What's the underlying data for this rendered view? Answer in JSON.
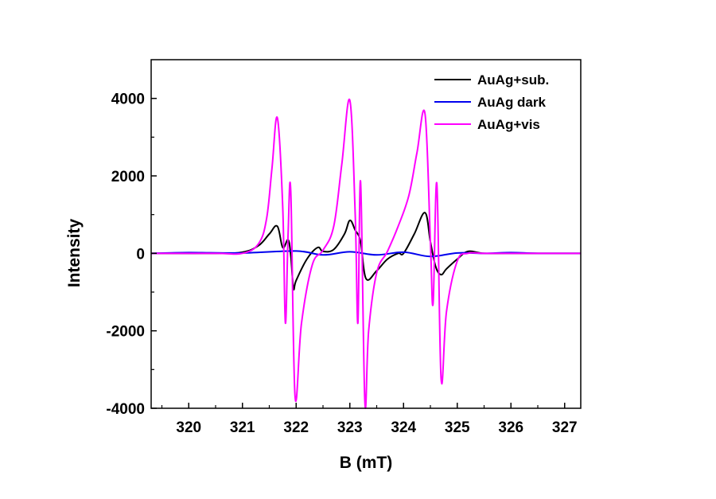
{
  "chart_data": {
    "type": "line",
    "xlabel": "B (mT)",
    "ylabel": "Intensity",
    "xlim": [
      319.3,
      327.3
    ],
    "ylim": [
      -4000,
      5000
    ],
    "x_ticks": [
      320,
      321,
      322,
      323,
      324,
      325,
      326,
      327
    ],
    "y_ticks": [
      -4000,
      -2000,
      0,
      2000,
      4000
    ],
    "x_tick_labels": [
      "320",
      "321",
      "322",
      "323",
      "324",
      "325",
      "326",
      "327"
    ],
    "y_tick_labels": [
      "-4000",
      "-2000",
      "0",
      "2000",
      "4000"
    ],
    "grid": false,
    "legend_position": "top-right",
    "series": [
      {
        "name": "AuAg+sub.",
        "color": "#000000",
        "x": [
          319.3,
          320.5,
          321.0,
          321.3,
          321.5,
          321.65,
          321.75,
          321.85,
          321.9,
          321.95,
          322.0,
          322.2,
          322.4,
          322.5,
          322.7,
          322.9,
          323.0,
          323.1,
          323.2,
          323.3,
          323.5,
          323.7,
          323.9,
          324.0,
          324.2,
          324.4,
          324.5,
          324.6,
          324.7,
          324.8,
          325.0,
          325.2,
          325.5,
          326.0,
          327.3
        ],
        "y": [
          0,
          0,
          30,
          200,
          500,
          700,
          150,
          350,
          -50,
          -900,
          -700,
          -150,
          150,
          50,
          100,
          500,
          850,
          600,
          300,
          -650,
          -450,
          -150,
          0,
          0,
          500,
          1050,
          300,
          -350,
          -550,
          -400,
          -150,
          50,
          0,
          0,
          0
        ]
      },
      {
        "name": "AuAg dark",
        "color": "#0000ee",
        "x": [
          319.3,
          320.0,
          321.0,
          322.0,
          322.5,
          323.0,
          323.5,
          324.0,
          324.5,
          325.0,
          325.5,
          326.0,
          326.5,
          327.3
        ],
        "y": [
          0,
          20,
          10,
          60,
          -40,
          40,
          -40,
          30,
          -80,
          10,
          0,
          20,
          0,
          0
        ]
      },
      {
        "name": "AuAg+vis",
        "color": "#ff00ff",
        "x": [
          319.3,
          320.5,
          321.0,
          321.3,
          321.45,
          321.55,
          321.65,
          321.75,
          321.8,
          321.85,
          321.9,
          321.98,
          322.1,
          322.3,
          322.5,
          322.7,
          322.85,
          323.0,
          323.1,
          323.15,
          323.2,
          323.28,
          323.35,
          323.5,
          323.7,
          323.9,
          324.1,
          324.25,
          324.4,
          324.5,
          324.55,
          324.62,
          324.7,
          324.8,
          325.0,
          325.2,
          325.5,
          326.0,
          327.3
        ],
        "y": [
          0,
          0,
          0,
          250,
          900,
          2200,
          3500,
          1200,
          -1800,
          500,
          1600,
          -3700,
          -1800,
          -300,
          80,
          700,
          2300,
          3950,
          1000,
          -1800,
          1850,
          -3850,
          -2000,
          -500,
          50,
          700,
          1500,
          2600,
          3600,
          300,
          -1300,
          1800,
          -3250,
          -1500,
          -200,
          0,
          0,
          0,
          0
        ]
      }
    ]
  }
}
